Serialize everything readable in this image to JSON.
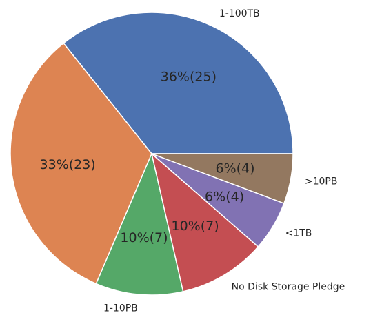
{
  "chart_data": {
    "type": "pie",
    "categories": [
      "1-100TB",
      null,
      "1-10PB",
      "No Disk Storage Pledge",
      "<1TB",
      ">10PB"
    ],
    "values": [
      25,
      23,
      7,
      7,
      4,
      4
    ],
    "value_labels": [
      "36%(25)",
      "33%(23)",
      "10%(7)",
      "10%(7)",
      "6%(4)",
      "6%(4)"
    ],
    "colors": [
      "#4c72b0",
      "#dd8452",
      "#55a868",
      "#c44e52",
      "#8172b3",
      "#937860"
    ]
  }
}
